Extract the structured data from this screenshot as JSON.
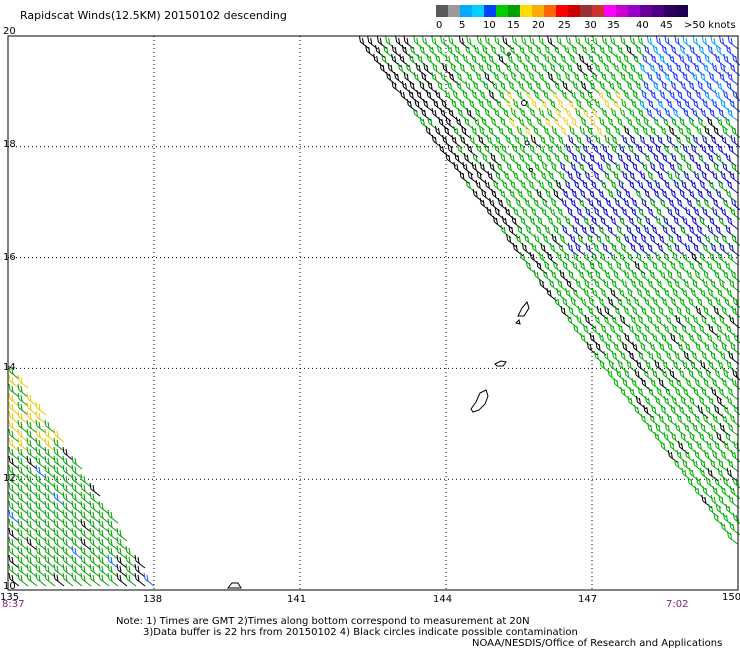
{
  "title": "Rapidscat Winds(12.5KM) 20150102 descending",
  "legend": {
    "labels": [
      "0",
      "5",
      "10",
      "15",
      "20",
      "25",
      "30",
      "35",
      "40",
      "45",
      ">50 knots"
    ],
    "colors": [
      "#5a5a5a",
      "#9a9a9a",
      "#00aaff",
      "#00d0ff",
      "#0044ff",
      "#00cc00",
      "#00a000",
      "#ffdd00",
      "#ffaa00",
      "#ff6600",
      "#ff0000",
      "#cc0000",
      "#993333",
      "#cc3333",
      "#ff00ff",
      "#cc00cc",
      "#9900cc",
      "#660099",
      "#4a0080",
      "#300060",
      "#200050"
    ]
  },
  "axes": {
    "lon_ticks": [
      "135",
      "138",
      "141",
      "144",
      "147",
      "150"
    ],
    "lat_ticks": [
      "20",
      "18",
      "16",
      "14",
      "12",
      "10"
    ]
  },
  "times": {
    "left": "8:37",
    "right": "7:02"
  },
  "notes": {
    "line1": "Note: 1) Times are GMT 2)Times along bottom correspond to measurement at 20N",
    "line2": "3)Data buffer is 22 hrs from 20150102 4) Black circles indicate possible contamination",
    "line3": "NOAA/NESDIS/Office of Research and Applications"
  }
}
